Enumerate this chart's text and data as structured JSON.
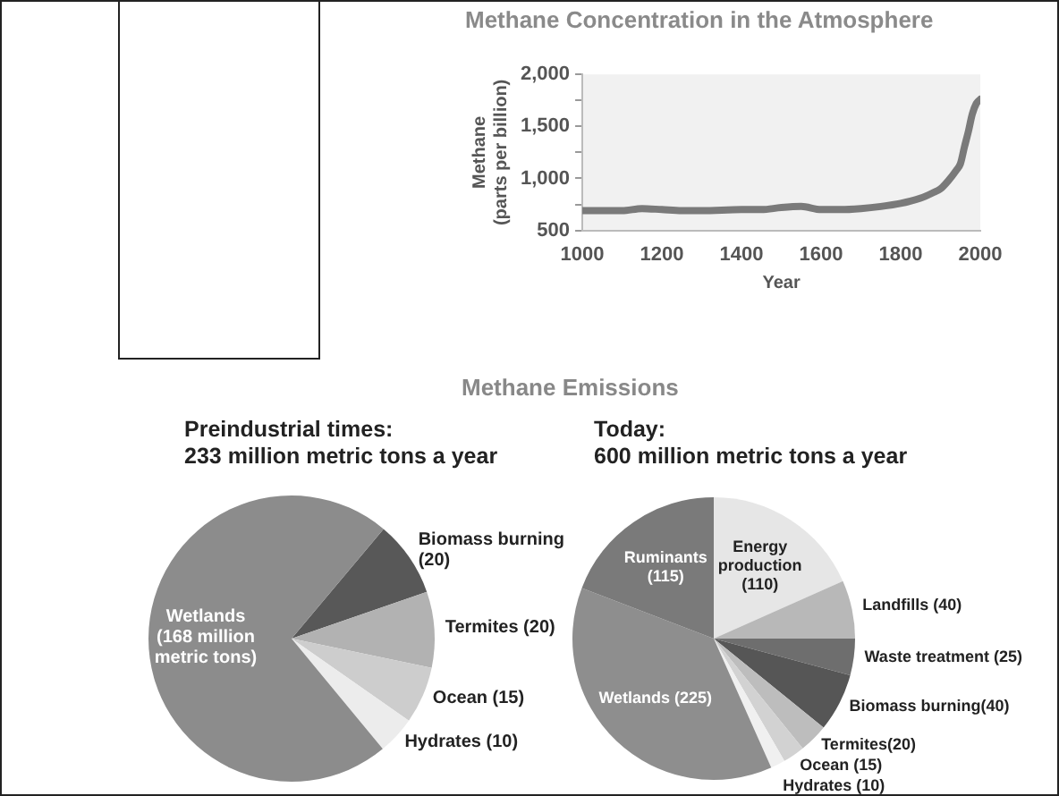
{
  "chart_data": [
    {
      "type": "line",
      "title": "Methane Concentration in the Atmosphere",
      "xlabel": "Year",
      "ylabel": "Methane (parts per billion)",
      "x": [
        1000,
        1050,
        1100,
        1150,
        1200,
        1250,
        1300,
        1400,
        1450,
        1500,
        1550,
        1600,
        1650,
        1700,
        1750,
        1800,
        1850,
        1880,
        1900,
        1920,
        1940,
        1950,
        1960,
        1970,
        1980,
        1990,
        2000
      ],
      "series": [
        {
          "color": "#7a7a7a",
          "values": [
            690,
            690,
            690,
            710,
            700,
            690,
            690,
            700,
            700,
            720,
            730,
            700,
            700,
            710,
            730,
            760,
            810,
            860,
            900,
            980,
            1080,
            1140,
            1300,
            1450,
            1620,
            1720,
            1760
          ]
        }
      ],
      "xlim": [
        1000,
        2000
      ],
      "xticks": [
        1000,
        1200,
        1400,
        1600,
        1800,
        2000
      ],
      "ylim": [
        500,
        2000
      ],
      "yticks": [
        {
          "value": 500,
          "label": "500"
        },
        {
          "value": 750,
          "label": null
        },
        {
          "value": 1000,
          "label": "1,000"
        },
        {
          "value": 1250,
          "label": null
        },
        {
          "value": 1500,
          "label": "1,500"
        },
        {
          "value": 1750,
          "label": null
        },
        {
          "value": 2000,
          "label": "2,000"
        }
      ],
      "grid": false,
      "legend": false,
      "marker": "none",
      "line_style": "solid"
    },
    {
      "type": "pie",
      "title": "Preindustrial times:",
      "subtitle": "233 million metric tons a year",
      "annotations": [
        "Methane Emissions"
      ],
      "categories": [
        "Biomass burning (20)",
        "Termites (20)",
        "Ocean (15)",
        "Hydrates (10)",
        "Wetlands (168 million metric tons)"
      ],
      "values": [
        20,
        20,
        15,
        10,
        168
      ],
      "colors": [
        "#585858",
        "#b2b2b2",
        "#cdcdcd",
        "#ececec",
        "#8c8c8c"
      ],
      "legend": false
    },
    {
      "type": "pie",
      "title": "Today:",
      "subtitle": "600 million metric tons a year",
      "categories": [
        "Energy production (110)",
        "Landfills (40)",
        "Waste treatment (25)",
        "Biomass burning(40)",
        "Termites(20)",
        "Ocean (15)",
        "Hydrates (10)",
        "Wetlands (225)",
        "Ruminants (115)"
      ],
      "values": [
        110,
        40,
        25,
        40,
        20,
        15,
        10,
        225,
        115
      ],
      "colors": [
        "#e6e6e6",
        "#b8b8b8",
        "#6e6e6e",
        "#565656",
        "#bdbdbd",
        "#d2d2d2",
        "#f0f0f0",
        "#8e8e8e",
        "#7a7a7a"
      ],
      "legend": false
    }
  ]
}
